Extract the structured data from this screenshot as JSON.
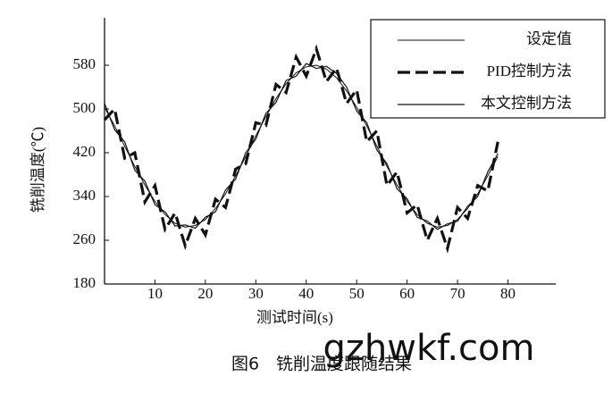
{
  "chart_data": {
    "type": "line",
    "xlabel": "测试时间(s)",
    "ylabel": "铣削温度(℃)",
    "caption": "图6　铣削温度跟随结果",
    "watermark": "gzhwkf.com",
    "x": [
      0,
      2,
      4,
      6,
      8,
      10,
      12,
      14,
      16,
      18,
      20,
      22,
      24,
      26,
      28,
      30,
      32,
      34,
      36,
      38,
      40,
      42,
      44,
      46,
      48,
      50,
      52,
      54,
      56,
      58,
      60,
      62,
      64,
      66,
      68,
      70,
      72,
      74,
      76,
      78
    ],
    "series": [
      {
        "name": "设定值",
        "color": "#111111",
        "width": 1,
        "dash": false,
        "values": [
          503,
          469,
          432,
          395,
          361,
          331,
          307,
          291,
          284,
          287,
          298,
          318,
          345,
          378,
          413,
          451,
          486,
          519,
          546,
          566,
          577,
          580,
          573,
          557,
          533,
          503,
          469,
          432,
          395,
          361,
          331,
          307,
          291,
          284,
          287,
          298,
          318,
          345,
          378,
          413
        ]
      },
      {
        "name": "PID控制方法",
        "color": "#111111",
        "width": 3.2,
        "dash": true,
        "values": [
          480,
          500,
          410,
          420,
          330,
          360,
          280,
          310,
          250,
          300,
          270,
          335,
          320,
          390,
          400,
          475,
          470,
          545,
          530,
          595,
          560,
          610,
          550,
          575,
          510,
          535,
          440,
          460,
          360,
          385,
          310,
          325,
          260,
          300,
          245,
          320,
          300,
          360,
          350,
          440
        ]
      },
      {
        "name": "本文控制方法",
        "color": "#111111",
        "width": 1.2,
        "dash": false,
        "values": [
          510,
          462,
          440,
          388,
          368,
          325,
          312,
          286,
          288,
          282,
          302,
          312,
          352,
          372,
          420,
          445,
          492,
          512,
          552,
          560,
          583,
          574,
          578,
          565,
          540,
          496,
          475,
          425,
          400,
          354,
          336,
          302,
          295,
          280,
          290,
          295,
          322,
          340,
          385,
          418
        ]
      }
    ],
    "xlim": [
      0,
      90
    ],
    "ylim": [
      180,
      660
    ],
    "xticks": [
      10,
      20,
      30,
      40,
      50,
      60,
      70,
      80
    ],
    "yticks": [
      180,
      260,
      340,
      420,
      500,
      580
    ],
    "legend": "upper right"
  }
}
